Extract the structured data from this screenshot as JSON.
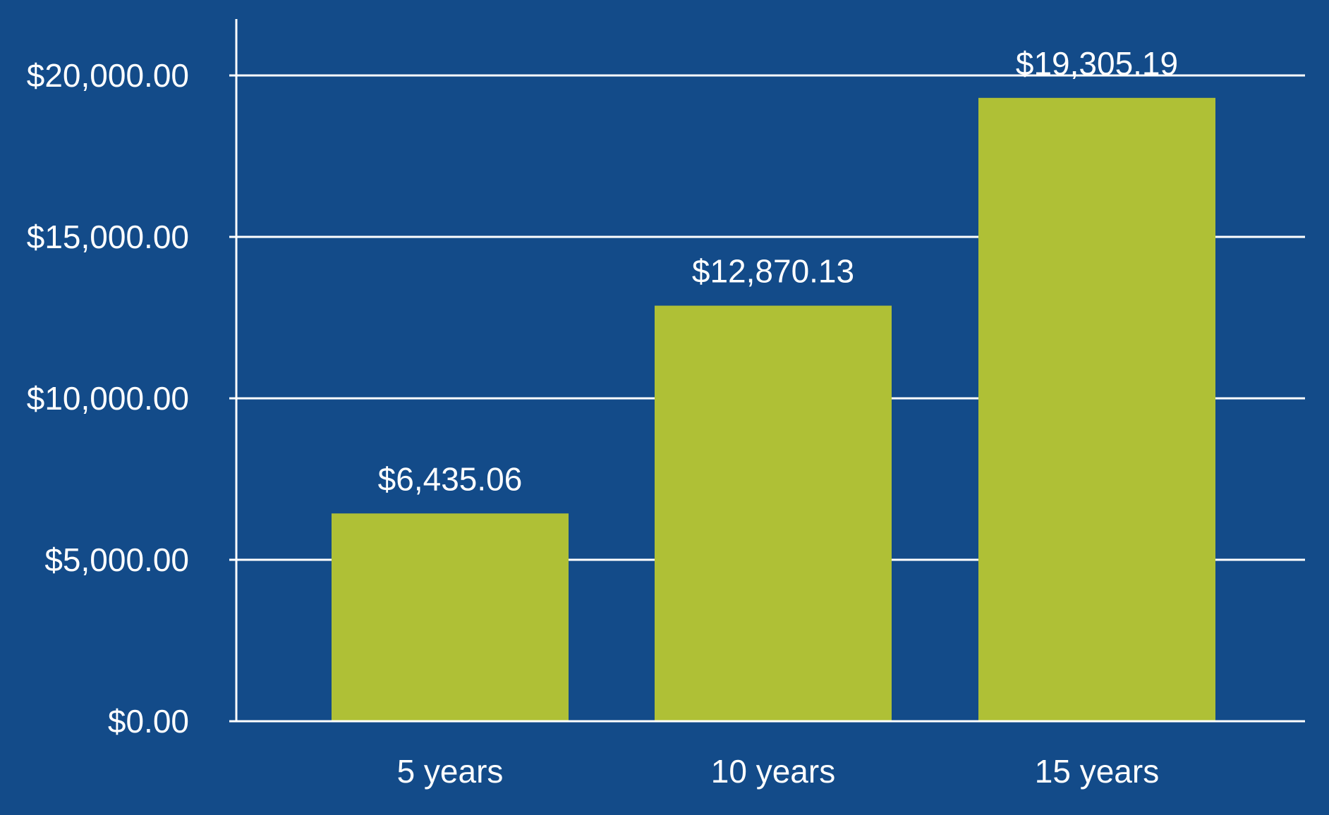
{
  "chart_data": {
    "type": "bar",
    "title": "",
    "xlabel": "",
    "ylabel": "",
    "categories": [
      "5 years",
      "10 years",
      "15 years"
    ],
    "values": [
      6435.06,
      12870.13,
      19305.19
    ],
    "data_labels": [
      "$6,435.06",
      "$12,870.13",
      "$19,305.19"
    ],
    "ylim": [
      0,
      20000
    ],
    "yticks": [
      0,
      5000,
      10000,
      15000,
      20000
    ],
    "ytick_labels": [
      "$0.00",
      "$5,000.00",
      "$10,000.00",
      "$15,000.00",
      "$20,000.00"
    ],
    "grid": true,
    "legend": "none"
  },
  "colors": {
    "background": "#134b89",
    "bar": "#afc036",
    "gridline": "#ffffff",
    "text": "#ffffff"
  }
}
